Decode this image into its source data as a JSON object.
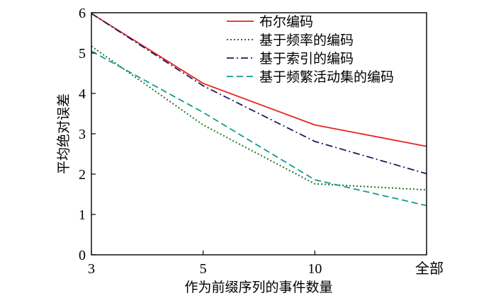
{
  "chart_data": {
    "type": "line",
    "title": "",
    "xlabel": "作为前缀序列的事件数量",
    "ylabel": "平均绝对误差",
    "categories": [
      "3",
      "5",
      "10",
      "全部"
    ],
    "ylim": [
      0,
      6
    ],
    "yticks": [
      "0",
      "1",
      "2",
      "3",
      "4",
      "5",
      "6"
    ],
    "grid": false,
    "legend_position": "top-right",
    "series": [
      {
        "name": "布尔编码",
        "values": [
          5.98,
          4.25,
          3.22,
          2.69
        ],
        "color": "#e8231f",
        "dash": "solid"
      },
      {
        "name": "基于频率的编码",
        "values": [
          5.17,
          3.22,
          1.76,
          1.61
        ],
        "color": "#1f7a1f",
        "dash": "dotted"
      },
      {
        "name": "基于索引的编码",
        "values": [
          5.98,
          4.19,
          2.81,
          2.01
        ],
        "color": "#1c1c5e",
        "dash": "dashdot"
      },
      {
        "name": "基于频繁活动集的编码",
        "values": [
          5.05,
          3.53,
          1.86,
          1.22
        ],
        "color": "#139c8c",
        "dash": "dashed"
      }
    ]
  }
}
